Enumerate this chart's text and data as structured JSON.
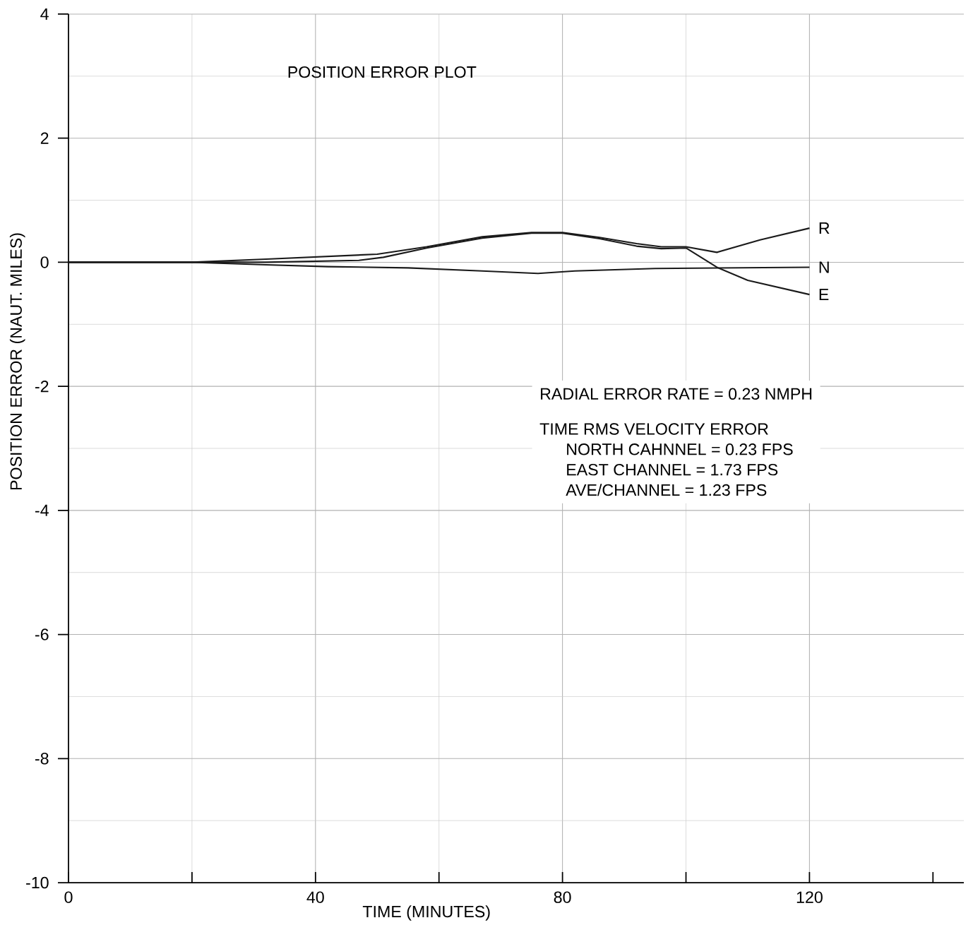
{
  "chart_data": {
    "type": "line",
    "title": "POSITION ERROR PLOT",
    "xlabel": "TIME (MINUTES)",
    "ylabel": "POSITION ERROR (NAUT. MILES)",
    "xlim": [
      0,
      145
    ],
    "ylim": [
      -10,
      4
    ],
    "xticks": [
      0,
      {
        "value": 20,
        "label": null
      },
      40,
      {
        "value": 60,
        "label": null
      },
      80,
      {
        "value": 100,
        "label": null
      },
      120,
      {
        "value": 140,
        "label": null
      }
    ],
    "yticks": [
      -10,
      -8,
      -6,
      -4,
      -2,
      0,
      2,
      4
    ],
    "grid": true,
    "marker": "none",
    "line_style": "solid",
    "series": [
      {
        "name": "R",
        "color": "#1a1a1a",
        "x": [
          0,
          20,
          32,
          50,
          58,
          67,
          75,
          80,
          86,
          92,
          96,
          100,
          105,
          112,
          120
        ],
        "values": [
          0,
          0,
          0.05,
          0.13,
          0.25,
          0.41,
          0.48,
          0.48,
          0.4,
          0.3,
          0.25,
          0.25,
          0.16,
          0.36,
          0.55
        ]
      },
      {
        "name": "N",
        "color": "#1a1a1a",
        "x": [
          0,
          20,
          32,
          42,
          55,
          67,
          76,
          82,
          95,
          120
        ],
        "values": [
          0,
          0,
          -0.04,
          -0.07,
          -0.09,
          -0.14,
          -0.18,
          -0.14,
          -0.1,
          -0.08
        ]
      },
      {
        "name": "E",
        "color": "#1a1a1a",
        "x": [
          0,
          20,
          32,
          47,
          51,
          58,
          67,
          75,
          80,
          86,
          92,
          96,
          100,
          105,
          110,
          120
        ],
        "values": [
          0,
          0,
          0,
          0.03,
          0.08,
          0.23,
          0.39,
          0.47,
          0.47,
          0.38,
          0.26,
          0.22,
          0.23,
          -0.08,
          -0.29,
          -0.52
        ]
      }
    ],
    "annotations": [
      "RADIAL ERROR RATE = 0.23 NMPH",
      "TIME RMS VELOCITY ERROR",
      "NORTH CAHNNEL = 0.23 FPS",
      "EAST CHANNEL = 1.73 FPS",
      "AVE/CHANNEL = 1.23 FPS"
    ]
  }
}
